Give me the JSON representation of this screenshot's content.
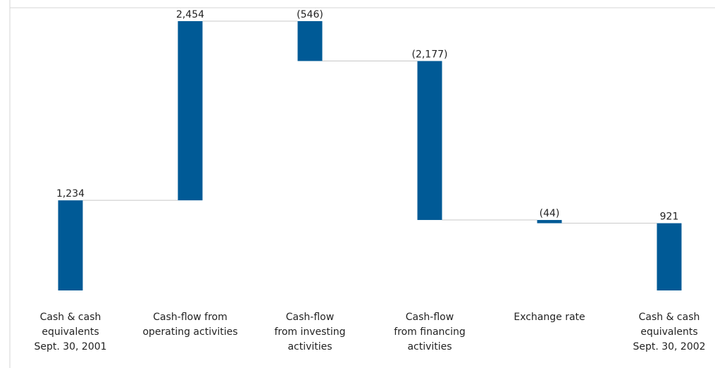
{
  "chart_data": {
    "type": "bar",
    "subtype": "waterfall",
    "title": "",
    "xlabel": "",
    "ylabel": "",
    "categories": [
      "Cash & cash\nequivalents\nSept. 30, 2001",
      "Cash-flow from\noperating activities",
      "Cash-flow\nfrom investing\nactivities",
      "Cash-flow\nfrom financing\nactivities",
      "Exchange rate",
      "Cash & cash\nequivalents\nSept. 30, 2002"
    ],
    "values": [
      1234,
      2454,
      -546,
      -2177,
      -44,
      921
    ],
    "value_labels": [
      "1,234",
      "2,454",
      "(546)",
      "(2,177)",
      "(44)",
      "921"
    ],
    "bar_kinds": [
      "total",
      "delta",
      "delta",
      "delta",
      "delta",
      "total"
    ],
    "ylim": [
      0,
      3688
    ],
    "grid": false,
    "legend": "none",
    "colors": {
      "bar": "#005a96",
      "connector": "#c8c8c8",
      "frame": "#d6d6d6",
      "text": "#222222"
    }
  }
}
